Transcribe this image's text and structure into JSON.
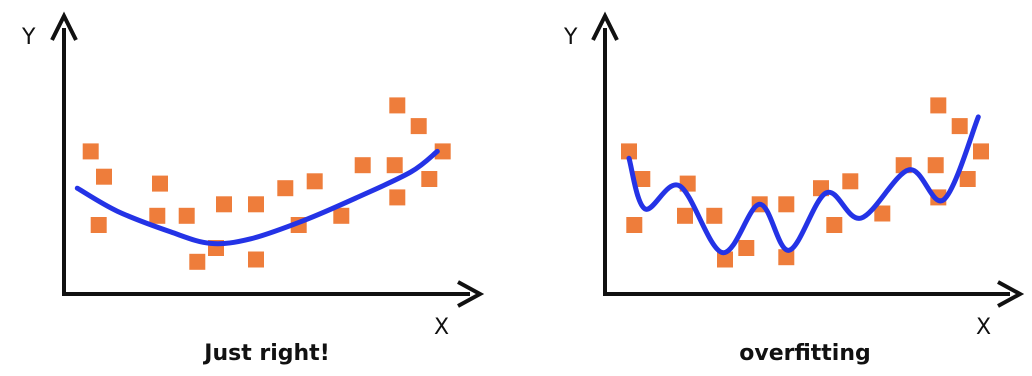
{
  "colors": {
    "point": "#ee7d3b",
    "curve": "#2433e6",
    "axis": "#111111",
    "background": "#ffffff"
  },
  "panels": [
    {
      "id": "just-right",
      "y_label": "Y",
      "x_label": "X",
      "caption": "Just right!",
      "curve_style": "smooth quadratic fit",
      "points": [
        [
          1.0,
          6.2
        ],
        [
          1.5,
          5.1
        ],
        [
          1.3,
          3.0
        ],
        [
          3.6,
          4.8
        ],
        [
          3.5,
          3.4
        ],
        [
          4.6,
          3.4
        ],
        [
          5.0,
          1.4
        ],
        [
          5.7,
          2.0
        ],
        [
          6.0,
          3.9
        ],
        [
          7.2,
          3.9
        ],
        [
          7.2,
          1.5
        ],
        [
          8.3,
          4.6
        ],
        [
          8.8,
          3.0
        ],
        [
          9.4,
          4.9
        ],
        [
          10.4,
          3.4
        ],
        [
          11.2,
          5.6
        ],
        [
          12.4,
          5.6
        ],
        [
          12.5,
          4.2
        ],
        [
          12.5,
          8.2
        ],
        [
          13.3,
          7.3
        ],
        [
          13.7,
          5.0
        ],
        [
          14.2,
          6.2
        ]
      ],
      "curve": [
        [
          0.5,
          4.6
        ],
        [
          2.0,
          3.6
        ],
        [
          4.0,
          2.7
        ],
        [
          5.5,
          2.2
        ],
        [
          7.0,
          2.4
        ],
        [
          9.0,
          3.2
        ],
        [
          11.0,
          4.2
        ],
        [
          13.0,
          5.3
        ],
        [
          14.0,
          6.2
        ]
      ]
    },
    {
      "id": "overfitting",
      "y_label": "Y",
      "x_label": "X",
      "caption": "overfitting",
      "curve_style": "wiggly curve through the points",
      "points": [
        [
          0.9,
          6.2
        ],
        [
          1.4,
          5.0
        ],
        [
          1.1,
          3.0
        ],
        [
          3.1,
          4.8
        ],
        [
          3.0,
          3.4
        ],
        [
          4.1,
          3.4
        ],
        [
          4.5,
          1.5
        ],
        [
          5.3,
          2.0
        ],
        [
          5.8,
          3.9
        ],
        [
          6.8,
          3.9
        ],
        [
          6.8,
          1.6
        ],
        [
          8.1,
          4.6
        ],
        [
          8.6,
          3.0
        ],
        [
          9.2,
          4.9
        ],
        [
          10.4,
          3.5
        ],
        [
          11.2,
          5.6
        ],
        [
          12.4,
          5.6
        ],
        [
          12.5,
          4.2
        ],
        [
          12.5,
          8.2
        ],
        [
          13.3,
          7.3
        ],
        [
          13.6,
          5.0
        ],
        [
          14.1,
          6.2
        ]
      ],
      "curve": [
        [
          0.9,
          5.9
        ],
        [
          1.5,
          3.7
        ],
        [
          2.8,
          4.7
        ],
        [
          4.4,
          1.8
        ],
        [
          5.8,
          3.9
        ],
        [
          6.9,
          1.9
        ],
        [
          8.3,
          4.4
        ],
        [
          9.6,
          3.3
        ],
        [
          11.4,
          5.4
        ],
        [
          12.7,
          4.1
        ],
        [
          14.0,
          7.7
        ]
      ]
    }
  ]
}
